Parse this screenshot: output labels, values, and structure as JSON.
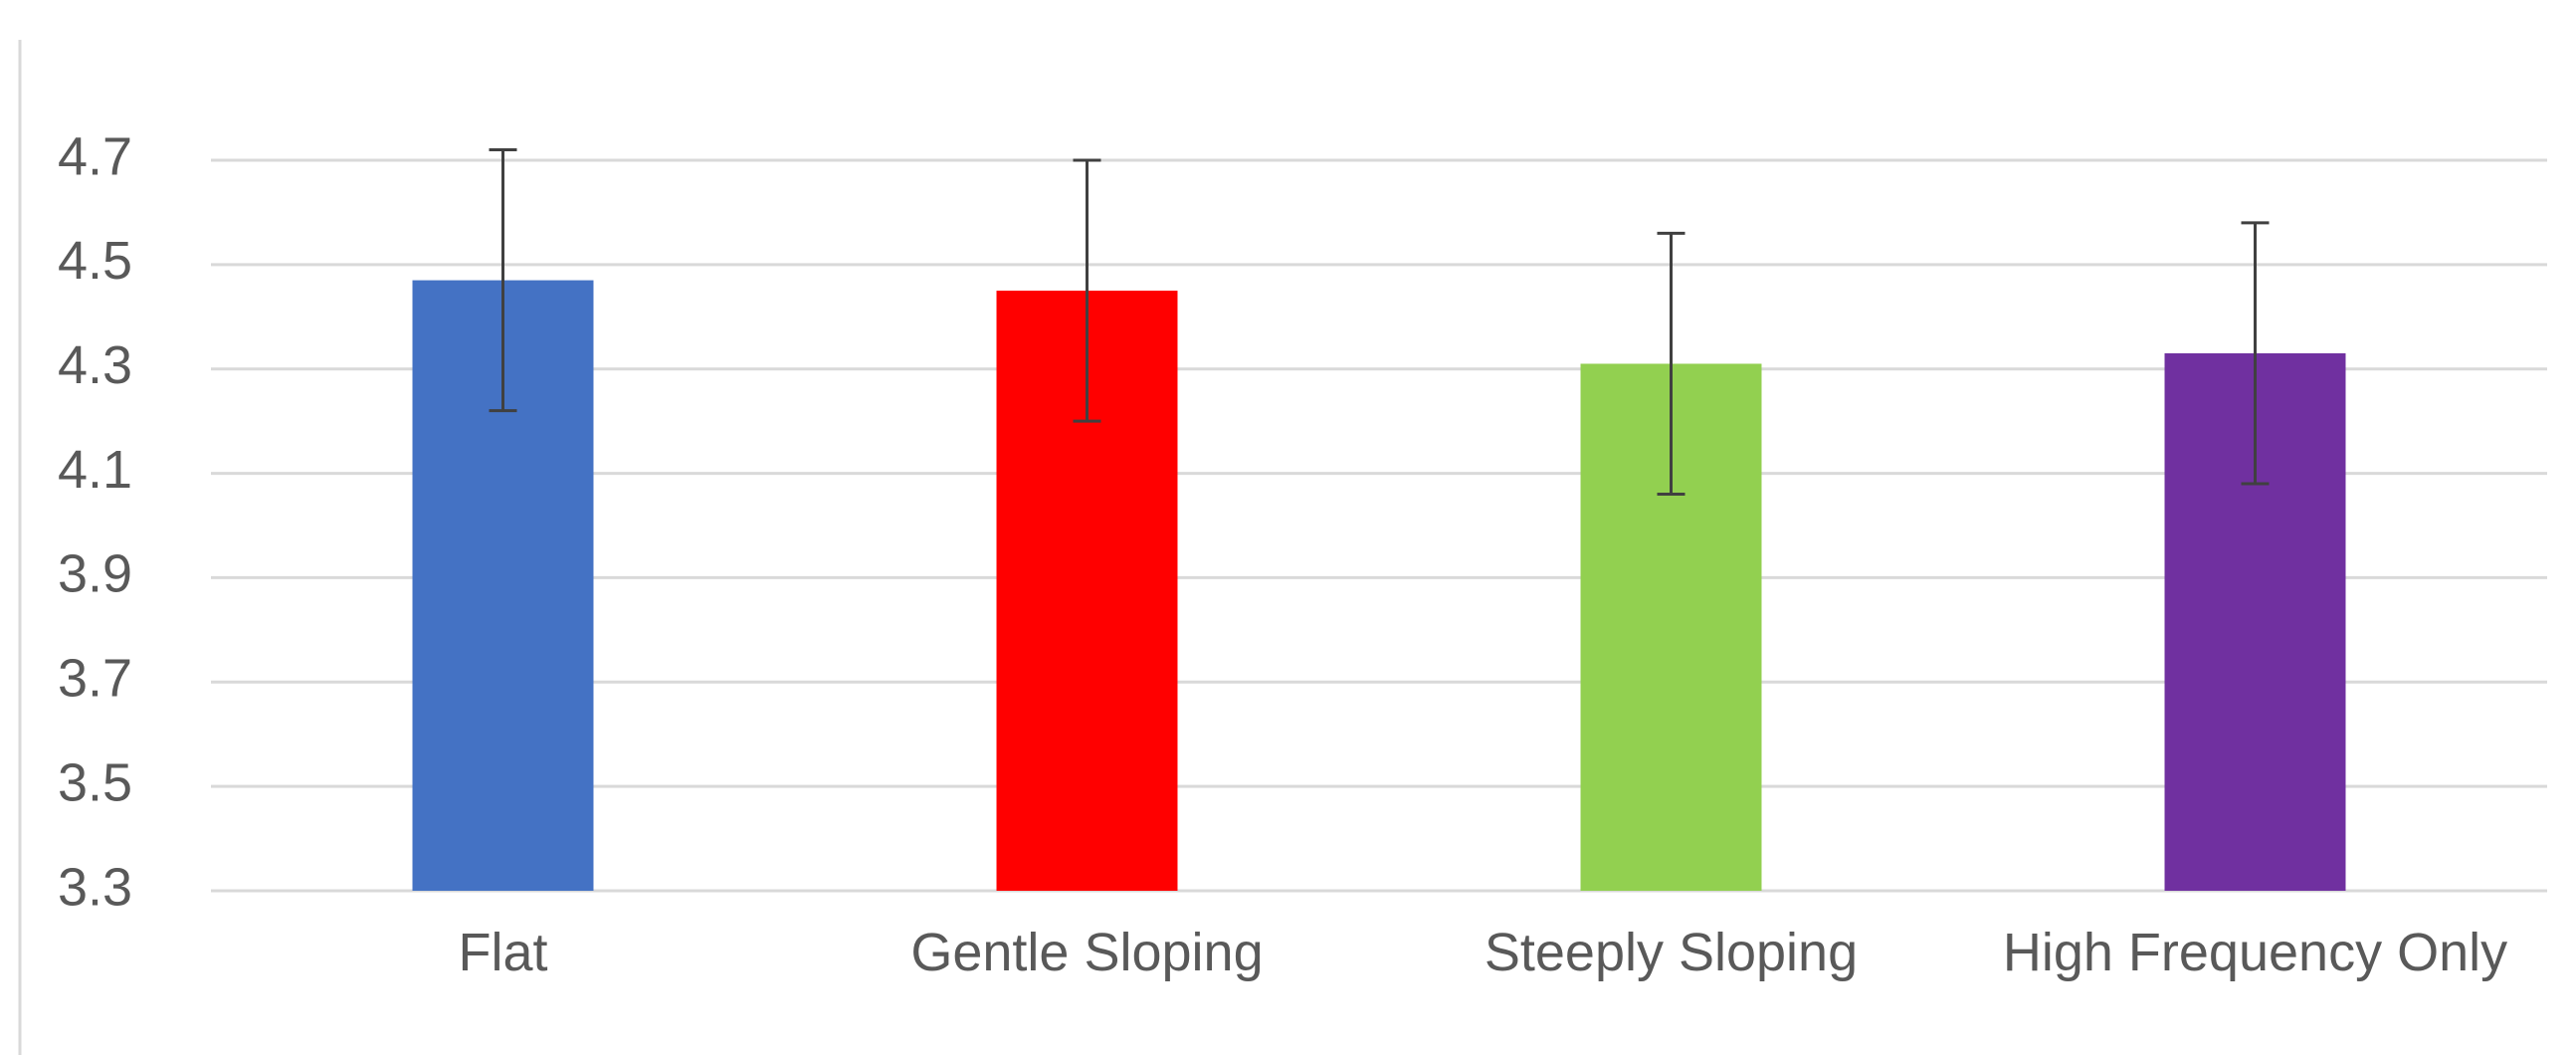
{
  "chart_data": {
    "type": "bar",
    "categories": [
      "Flat",
      "Gentle Sloping",
      "Steeply Sloping",
      "High Frequency Only"
    ],
    "values": [
      4.47,
      4.45,
      4.31,
      4.33
    ],
    "errors": [
      0.25,
      0.25,
      0.25,
      0.25
    ],
    "colors": [
      "#4472c4",
      "#ff0000",
      "#92d050",
      "#7030a0"
    ],
    "ylim": [
      3.3,
      4.7
    ],
    "yticks": [
      3.3,
      3.5,
      3.7,
      3.9,
      4.1,
      4.3,
      4.5,
      4.7
    ],
    "grid": true
  }
}
